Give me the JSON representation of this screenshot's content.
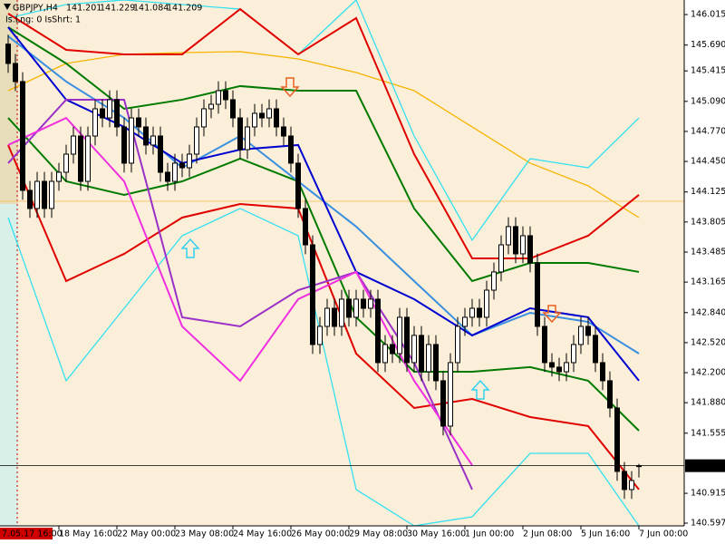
{
  "chart_data": {
    "type": "candlestick",
    "title": "GBPJPY,H4",
    "status_text": "Is.Lng: 0 IsShrt: 1",
    "categories": [
      null,
      "7.05.17 16:00",
      null,
      null,
      null,
      null,
      null,
      "18 May 16:00",
      null,
      null,
      null,
      null,
      null,
      null,
      null,
      "22 May 00:00",
      null,
      null,
      null,
      null,
      null,
      null,
      null,
      "23 May 08:00",
      null,
      null,
      null,
      null,
      null,
      null,
      null,
      "24 May 16:00",
      null,
      null,
      null,
      null,
      null,
      null,
      null,
      "26 May 00:00",
      null,
      null,
      null,
      null,
      null,
      null,
      null,
      "29 May 08:00",
      null,
      null,
      null,
      null,
      null,
      null,
      null,
      "30 May 16:00",
      null,
      null,
      null,
      null,
      null,
      null,
      null,
      "1 Jun 00:00",
      null,
      null,
      null,
      null,
      null,
      null,
      null,
      "2 Jun 08:00",
      null,
      null,
      null,
      null,
      null,
      null,
      null,
      "5 Jun 16:00",
      null,
      null,
      null,
      null,
      null,
      null,
      null,
      "7 Jun 00:00"
    ],
    "open": [
      145.7,
      145.494,
      145.301,
      144.142,
      143.949,
      144.238,
      143.949,
      144.238,
      144.335,
      144.528,
      144.721,
      144.238,
      144.721,
      145.011,
      144.914,
      145.108,
      144.818,
      144.432,
      144.914,
      144.818,
      144.625,
      144.721,
      144.335,
      144.238,
      144.432,
      144.383,
      144.528,
      144.818,
      145.011,
      145.059,
      145.204,
      145.108,
      144.914,
      144.576,
      144.818,
      144.963,
      144.914,
      145.011,
      144.818,
      144.721,
      144.432,
      143.949,
      143.562,
      142.5,
      142.693,
      142.886,
      142.693,
      142.983,
      142.79,
      142.983,
      142.886,
      142.983,
      142.307,
      142.5,
      142.403,
      142.79,
      142.307,
      142.597,
      142.21,
      142.5,
      142.114,
      141.631,
      142.307,
      142.693,
      142.79,
      142.886,
      142.79,
      143.079,
      143.273,
      143.562,
      143.756,
      143.466,
      143.659,
      143.369,
      142.693,
      142.307,
      142.259,
      142.21,
      142.307,
      142.5,
      142.693,
      142.597,
      142.307,
      142.114,
      141.824,
      141.148,
      140.955,
      141.201
    ],
    "high": [
      145.8,
      145.594,
      145.401,
      144.242,
      144.338,
      144.338,
      144.338,
      144.435,
      144.628,
      144.821,
      144.821,
      144.821,
      145.111,
      145.111,
      145.208,
      145.208,
      144.918,
      145.014,
      145.014,
      144.918,
      144.821,
      144.821,
      144.435,
      144.532,
      144.532,
      144.628,
      144.918,
      145.111,
      145.159,
      145.304,
      145.304,
      145.208,
      145.014,
      144.918,
      145.063,
      145.063,
      145.111,
      145.111,
      144.918,
      144.821,
      144.532,
      144.049,
      143.662,
      142.793,
      142.986,
      142.986,
      143.083,
      143.083,
      143.083,
      143.083,
      143.083,
      143.083,
      142.6,
      142.6,
      142.89,
      142.89,
      142.697,
      142.697,
      142.6,
      142.6,
      142.214,
      142.407,
      142.793,
      142.89,
      142.986,
      142.986,
      143.179,
      143.373,
      143.662,
      143.856,
      143.856,
      143.759,
      143.759,
      143.469,
      142.793,
      142.407,
      142.359,
      142.407,
      142.6,
      142.793,
      142.793,
      142.697,
      142.407,
      142.214,
      141.924,
      141.248,
      141.151,
      141.229
    ],
    "low": [
      145.394,
      145.201,
      144.042,
      143.849,
      143.849,
      143.849,
      143.849,
      144.138,
      144.235,
      144.428,
      144.138,
      144.138,
      144.621,
      144.814,
      144.814,
      144.718,
      144.332,
      144.332,
      144.718,
      144.525,
      144.525,
      144.235,
      144.138,
      144.138,
      144.283,
      144.283,
      144.428,
      144.718,
      144.911,
      144.959,
      145.008,
      144.814,
      144.476,
      144.476,
      144.718,
      144.814,
      144.814,
      144.718,
      144.621,
      144.332,
      143.849,
      143.462,
      142.4,
      142.4,
      142.593,
      142.593,
      142.593,
      142.69,
      142.69,
      142.786,
      142.786,
      142.207,
      142.207,
      142.303,
      142.303,
      142.207,
      142.207,
      142.11,
      142.11,
      142.014,
      141.531,
      141.531,
      142.207,
      142.593,
      142.69,
      142.69,
      142.69,
      142.979,
      143.173,
      143.462,
      143.366,
      143.366,
      143.269,
      142.593,
      142.207,
      142.159,
      142.11,
      142.11,
      142.207,
      142.4,
      142.497,
      142.207,
      142.014,
      141.724,
      141.048,
      140.855,
      140.855,
      141.084
    ],
    "close": [
      145.494,
      145.301,
      144.142,
      143.949,
      144.238,
      143.949,
      144.238,
      144.335,
      144.528,
      144.721,
      144.238,
      144.721,
      145.011,
      144.914,
      145.108,
      144.818,
      144.432,
      144.914,
      144.818,
      144.625,
      144.721,
      144.335,
      144.238,
      144.432,
      144.383,
      144.528,
      144.818,
      145.011,
      145.059,
      145.204,
      145.108,
      144.914,
      144.576,
      144.818,
      144.963,
      144.914,
      145.011,
      144.818,
      144.721,
      144.432,
      143.949,
      143.562,
      142.5,
      142.693,
      142.886,
      142.693,
      142.983,
      142.79,
      142.983,
      142.886,
      142.983,
      142.307,
      142.5,
      142.403,
      142.79,
      142.307,
      142.597,
      142.21,
      142.5,
      142.114,
      141.631,
      142.307,
      142.693,
      142.79,
      142.886,
      142.79,
      143.079,
      143.273,
      143.562,
      143.756,
      143.466,
      143.659,
      143.369,
      142.693,
      142.307,
      142.259,
      142.21,
      142.307,
      142.5,
      142.693,
      142.597,
      142.307,
      142.114,
      141.824,
      141.148,
      140.955,
      141.051,
      141.209
    ],
    "ylim": [
      140.568,
      146.17
    ],
    "yticks": [
      146.015,
      {
        "value": 145.69,
        "label": "145.690"
      },
      145.415,
      {
        "value": 145.09,
        "label": "145.090"
      },
      {
        "value": 144.77,
        "label": "144.770"
      },
      {
        "value": 144.45,
        "label": "144.450"
      },
      144.125,
      143.805,
      143.485,
      143.165,
      {
        "value": 142.84,
        "label": "142.840"
      },
      {
        "value": 142.52,
        "label": "142.520"
      },
      {
        "value": 142.2,
        "label": "142.200"
      },
      {
        "value": 141.88,
        "label": "141.880"
      },
      141.555,
      140.915,
      140.597
    ],
    "bull_color": "#ffffff",
    "bear_color": "#000000",
    "level": 144.026,
    "level_color": "#f5c46a",
    "lines": {
      "x": [
        0,
        8,
        16,
        24,
        32,
        40,
        48,
        56,
        64,
        72,
        80,
        87
      ],
      "series": [
        {
          "color": "#f5b400",
          "values": [
            145.204,
            145.494,
            145.591,
            145.61,
            145.62,
            145.542,
            145.397,
            145.204,
            144.818,
            144.432,
            144.19,
            143.852
          ]
        },
        {
          "color": "#33e0f0",
          "values": [
            145.977,
            146.122,
            146.17,
            146.122,
            146.073,
            145.591,
            146.17,
            144.721,
            143.611,
            144.48,
            144.383,
            144.914
          ]
        },
        {
          "color": "#33e0f0",
          "values": [
            143.852,
            142.114,
            142.886,
            143.659,
            143.949,
            143.659,
            140.955,
            140.568,
            140.665,
            141.341,
            141.341,
            140.568
          ]
        },
        {
          "color": "#e00000",
          "values": [
            146.025,
            145.639,
            145.591,
            145.591,
            146.073,
            145.591,
            145.977,
            144.528,
            143.417,
            143.417,
            143.659,
            144.094
          ]
        },
        {
          "color": "#e00000",
          "values": [
            144.625,
            143.176,
            143.466,
            143.852,
            143.997,
            143.949,
            142.403,
            141.824,
            141.92,
            141.727,
            141.631,
            140.955
          ]
        },
        {
          "color": "#007a00",
          "values": [
            145.88,
            145.494,
            145.011,
            145.108,
            145.253,
            145.204,
            145.204,
            143.949,
            143.176,
            143.369,
            143.369,
            143.273
          ]
        },
        {
          "color": "#007a00",
          "values": [
            144.914,
            144.238,
            144.094,
            144.238,
            144.48,
            144.238,
            142.79,
            142.21,
            142.21,
            142.259,
            142.114,
            141.582
          ]
        },
        {
          "color": "#3a8fe0",
          "values": [
            145.784,
            145.301,
            144.914,
            144.383,
            144.721,
            144.238,
            143.756,
            143.176,
            142.597,
            142.838,
            142.741,
            142.403
          ]
        },
        {
          "color": "#0000d0",
          "values": [
            145.88,
            145.108,
            144.818,
            144.432,
            144.576,
            144.625,
            143.273,
            142.983,
            142.597,
            142.886,
            142.79,
            142.114
          ]
        },
        {
          "color": "#9a30c8",
          "values": [
            144.432,
            145.108,
            145.108,
            142.79,
            142.693,
            143.079,
            143.273,
            142.307,
            140.955,
            null,
            null,
            null
          ]
        },
        {
          "color": "#f030e0",
          "values": [
            144.625,
            144.914,
            144.238,
            142.693,
            142.114,
            142.983,
            143.273,
            142.114,
            141.215,
            null,
            null,
            null
          ]
        }
      ]
    }
  }
}
